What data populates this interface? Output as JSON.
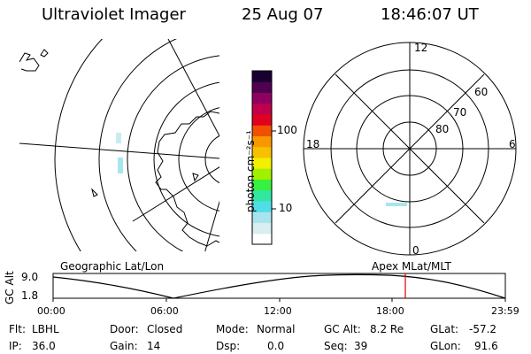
{
  "header": {
    "instrument": "Ultraviolet Imager",
    "date": "25 Aug 07",
    "time": "18:46:07 UT"
  },
  "colorbar": {
    "unit_label": "photon cm⁻²s⁻¹",
    "ticks": [
      "100",
      "10"
    ],
    "scale": "log",
    "colors": [
      "#ffffff",
      "#d8eef0",
      "#a9e4ee",
      "#50dde8",
      "#30e8a0",
      "#38f040",
      "#a0f000",
      "#f0f000",
      "#f8c000",
      "#f89800",
      "#f05000",
      "#e00020",
      "#c0004a",
      "#900060",
      "#500050",
      "#180030"
    ]
  },
  "polar_plot": {
    "labels": {
      "top": "12",
      "right": "6",
      "bottom": "0",
      "left": "18"
    },
    "latitude_labels": [
      "60",
      "70",
      "80"
    ]
  },
  "footprint_panel": {
    "left_label": "Geographic Lat/Lon",
    "right_label": "Apex MLat/MLT"
  },
  "altitude_plot": {
    "axis_title": "GC Alt",
    "y_ticks": [
      "9.0",
      "1.8"
    ],
    "x_ticks": [
      "00:00",
      "06:00",
      "12:00",
      "18:00",
      "23:59"
    ],
    "current_time_marker": "18:46",
    "marker_color": "#e00000"
  },
  "status": {
    "flt_label": "Flt:",
    "flt": "LBHL",
    "ip_label": "IP:",
    "ip": "36.0",
    "door_label": "Door:",
    "door": "Closed",
    "gain_label": "Gain:",
    "gain": "14",
    "mode_label": "Mode:",
    "mode": "Normal",
    "dsp_label": "Dsp:",
    "dsp": "0.0",
    "gcalt_label": "GC Alt:",
    "gcalt": "8.2 Re",
    "seq_label": "Seq:",
    "seq": "39",
    "glat_label": "GLat:",
    "glat": "-57.2",
    "glon_label": "GLon:",
    "glon": "91.6"
  }
}
